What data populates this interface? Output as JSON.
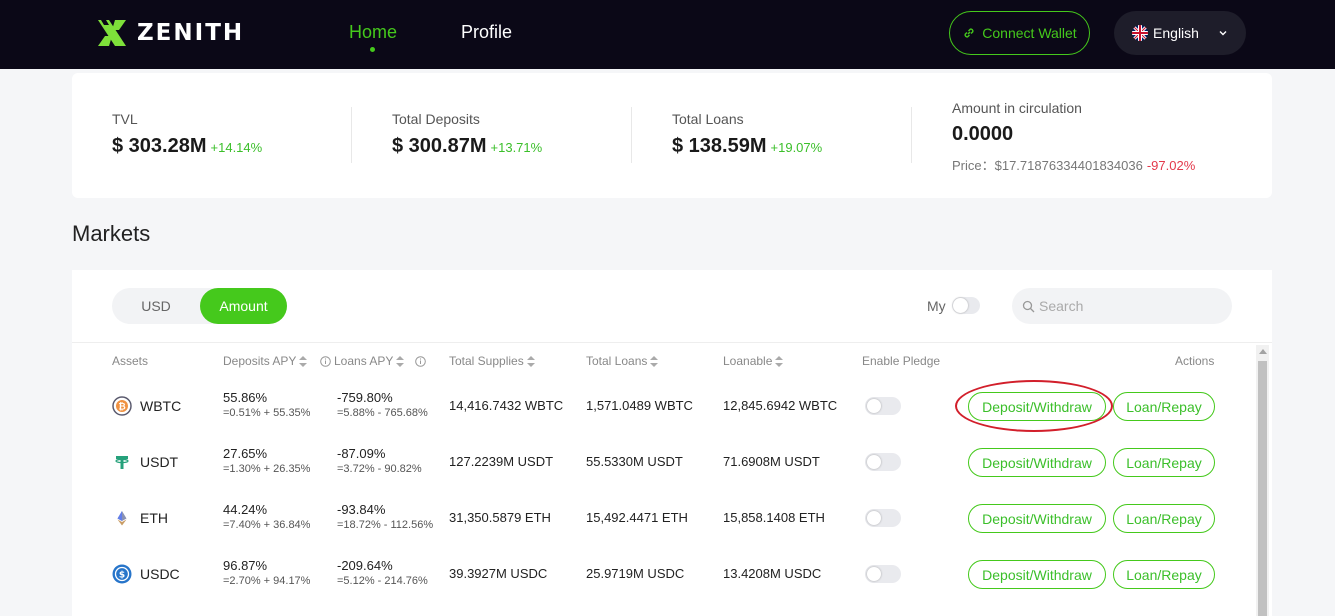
{
  "header": {
    "brand": "ZENITH",
    "nav": [
      {
        "label": "Home"
      },
      {
        "label": "Profile"
      }
    ],
    "connect_wallet": "Connect Wallet",
    "language": "English"
  },
  "stats": {
    "tvl": {
      "label": "TVL",
      "value": "$ 303.28M",
      "change": "+14.14%"
    },
    "deposits": {
      "label": "Total Deposits",
      "value": "$ 300.87M",
      "change": "+13.71%"
    },
    "loans": {
      "label": "Total Loans",
      "value": "$ 138.59M",
      "change": "+19.07%"
    },
    "circulation": {
      "label": "Amount in circulation",
      "value": "0.0000",
      "price": "Price：$17.71876334401834036",
      "price_change": "-97.02%"
    }
  },
  "markets": {
    "title": "Markets",
    "toggle": {
      "usd": "USD",
      "amount": "Amount"
    },
    "my_label": "My",
    "search_placeholder": "Search",
    "columns": {
      "assets": "Assets",
      "deposits_apy": "Deposits APY",
      "loans_apy": "Loans APY",
      "total_supplies": "Total Supplies",
      "total_loans": "Total Loans",
      "loanable": "Loanable",
      "enable_pledge": "Enable Pledge",
      "actions": "Actions"
    },
    "actions": {
      "deposit": "Deposit/Withdraw",
      "loan": "Loan/Repay"
    },
    "rows": [
      {
        "asset": "WBTC",
        "dep_apy": "55.86%",
        "dep_apy_sub": "=0.51% + 55.35%",
        "loan_apy": "-759.80%",
        "loan_apy_sub": "=5.88% - 765.68%",
        "supplies": "14,416.7432 WBTC",
        "loans": "1,571.0489 WBTC",
        "loanable": "12,845.6942 WBTC",
        "coin_color": "#f09242"
      },
      {
        "asset": "USDT",
        "dep_apy": "27.65%",
        "dep_apy_sub": "=1.30% + 26.35%",
        "loan_apy": "-87.09%",
        "loan_apy_sub": "=3.72% - 90.82%",
        "supplies": "127.2239M USDT",
        "loans": "55.5330M USDT",
        "loanable": "71.6908M USDT",
        "coin_color": "#26a17b"
      },
      {
        "asset": "ETH",
        "dep_apy": "44.24%",
        "dep_apy_sub": "=7.40% + 36.84%",
        "loan_apy": "-93.84%",
        "loan_apy_sub": "=18.72% - 112.56%",
        "supplies": "31,350.5879 ETH",
        "loans": "15,492.4471 ETH",
        "loanable": "15,858.1408 ETH",
        "coin_color": "#627eea"
      },
      {
        "asset": "USDC",
        "dep_apy": "96.87%",
        "dep_apy_sub": "=2.70% + 94.17%",
        "loan_apy": "-209.64%",
        "loan_apy_sub": "=5.12% - 214.76%",
        "supplies": "39.3927M USDC",
        "loans": "25.9719M USDC",
        "loanable": "13.4208M USDC",
        "coin_color": "#2775ca"
      }
    ]
  },
  "colors": {
    "accent": "#45c91c",
    "header_bg": "#0b0817",
    "negative": "#e3394b",
    "highlight": "#d21f2b"
  }
}
